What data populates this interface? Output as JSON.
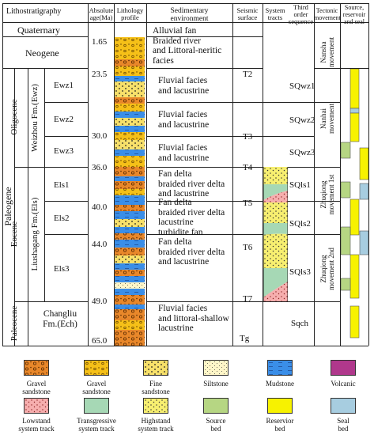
{
  "headers": {
    "lithostratigraphy": "Lithostratigraphy",
    "absolute_age": "Absolute\nage(Ma)",
    "lithology_profile": "Lithology\nprofile",
    "sedimentary_environment": "Sedimentary\nenvironment",
    "seismic_surface": "Seismic\nsurface",
    "system_tracts": "System\ntracts",
    "third_order_sequence": "Third\norder\nsequence",
    "tectonic_movement": "Tectonic\nmovement",
    "source_reservoir_seal": "Source,\nreservoir\nand seal"
  },
  "strat": {
    "quaternary": "Quaternary",
    "neogene": "Neogene",
    "paleogene": "Paleogene",
    "oligocene": "Oligocene",
    "eocene": "Eocene",
    "paleocene": "Paleocene",
    "weizhou": "Weizhou Fm.(Ewz)",
    "liushagang": "Liushagang Fm.(Els)",
    "changliu": "Changliu\nFm.(Ech)",
    "ewz1": "Ewz1",
    "ewz2": "Ewz2",
    "ewz3": "Ewz3",
    "els1": "Els1",
    "els2": "Els2",
    "els3": "Els3"
  },
  "ages": [
    "1.65",
    "23.5",
    "30.0",
    "36.0",
    "40.0",
    "44.0",
    "49.0",
    "65.0"
  ],
  "environments": [
    "Alluvial fan\nBraided river\nand Littoral-neritic\nfacies",
    "Fluvial facies\nand lacustrine",
    "Fluvial facies\nand lacustrine",
    "Fluvial facies\nand lacustrine",
    "Fan delta\nbraided river delta\nand lacustrine",
    "Fan delta\nbraided river delta\nlacustrine\nturbidite fan",
    "Fan delta\nbraided river delta\nand lacustrine",
    "Fluvial facies\nand littoral-shallow\nlacustrine"
  ],
  "seismic": [
    "T2",
    "T3",
    "T4",
    "T5",
    "T6",
    "T7",
    "Tg"
  ],
  "sequences": [
    "SQwz1",
    "SQwz2",
    "SQwz3",
    "SQls1",
    "SQls2",
    "SQls3",
    "Sqch"
  ],
  "tectonic": [
    "Nansha\nmovement",
    "Nanhai\nmovement",
    "Zhuqiong\nmovement 1st",
    "Zhuqiong\nmovement 2nd"
  ],
  "legend": [
    {
      "label": "Gravel\nsandstone",
      "color": "#e8872a",
      "pattern": "gravel"
    },
    {
      "label": "Gravel\nsandstone",
      "color": "#f5c018",
      "pattern": "gravel-small"
    },
    {
      "label": "Fine\nsandstone",
      "color": "#f7e06a",
      "pattern": "dots"
    },
    {
      "label": "Siltstone",
      "color": "#fff6c8",
      "pattern": "fine-dots"
    },
    {
      "label": "Mudstone",
      "color": "#3a8ee8",
      "pattern": "dash"
    },
    {
      "label": "Volcanic",
      "color": "#b0388c",
      "pattern": "none"
    },
    {
      "label": "Lowstand\nsystem track",
      "color": "#f6aeae",
      "pattern": "dots"
    },
    {
      "label": "Transgressive\nsystem track",
      "color": "#a6d8b5",
      "pattern": "none"
    },
    {
      "label": "Highstand\nsystem track",
      "color": "#f7ef70",
      "pattern": "dots"
    },
    {
      "label": "Source\nbed",
      "color": "#b6d683",
      "pattern": "none"
    },
    {
      "label": "Reservior\nbed",
      "color": "#f7f200",
      "pattern": "none"
    },
    {
      "label": "Seal\nbed",
      "color": "#a7cde0",
      "pattern": "none"
    }
  ],
  "colors": {
    "gravel": "#e8872a",
    "gravel_yellow": "#f5c018",
    "fine_sand": "#f7e06a",
    "silt": "#fff6c8",
    "mud": "#3a8ee8",
    "lowstand": "#f6aeae",
    "transgressive": "#a6d8b5",
    "highstand": "#f7ef70",
    "source": "#b6d683",
    "reservoir": "#f7f200",
    "seal": "#a7cde0"
  }
}
